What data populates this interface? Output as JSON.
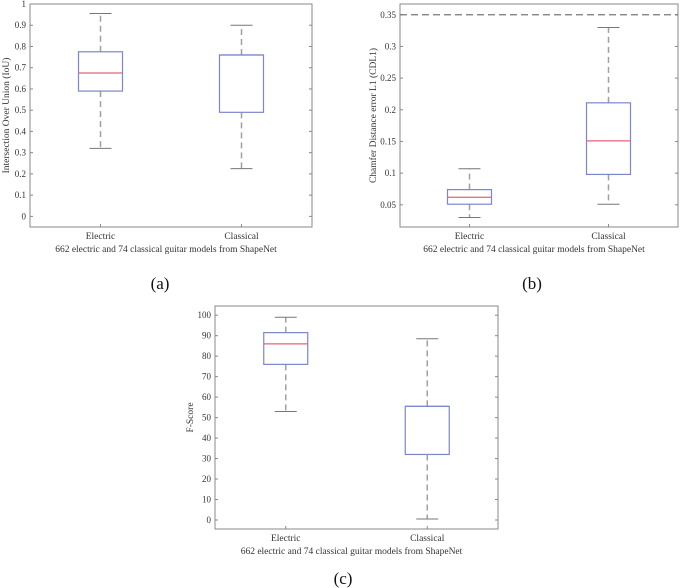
{
  "chart_data": [
    {
      "type": "box",
      "panel_label": "(a)",
      "title": "",
      "xlabel": "662 electric and  74 classical guitar models from ShapeNet",
      "ylabel": "Intersection Over Union (IoU)",
      "categories": [
        "Electric",
        "Classical"
      ],
      "ylim": [
        -0.05,
        1.0
      ],
      "yticks": [
        0,
        0.1,
        0.2,
        0.3,
        0.4,
        0.5,
        0.6,
        0.7,
        0.8,
        0.9,
        1
      ],
      "ytick_labels": [
        "0",
        "0.1",
        "0.2",
        "0.3",
        "0.4",
        "0.5",
        "0.6",
        "0.7",
        "0.8",
        "0.9",
        "1"
      ],
      "boxes": [
        {
          "whisker_low": 0.32,
          "q1": 0.59,
          "median": 0.675,
          "q3": 0.775,
          "whisker_high": 0.955
        },
        {
          "whisker_low": 0.225,
          "q1": 0.49,
          "median": 0.76,
          "q3": 0.76,
          "whisker_high": 0.9
        }
      ],
      "reference_line": null
    },
    {
      "type": "box",
      "panel_label": "(b)",
      "title": "",
      "xlabel": "662 electric and  74 classical guitar models from ShapeNet",
      "ylabel": "Chamfer Distance error L1 (CDL1)",
      "categories": [
        "Electric",
        "Classical"
      ],
      "ylim": [
        0.015,
        0.367
      ],
      "yticks": [
        0.05,
        0.1,
        0.15,
        0.2,
        0.25,
        0.3,
        0.35
      ],
      "ytick_labels": [
        "0.05",
        "0.1",
        "0.15",
        "0.2",
        "0.25",
        "0.3",
        "0.35"
      ],
      "boxes": [
        {
          "whisker_low": 0.03,
          "q1": 0.051,
          "median": 0.062,
          "q3": 0.074,
          "whisker_high": 0.107
        },
        {
          "whisker_low": 0.051,
          "q1": 0.098,
          "median": 0.151,
          "q3": 0.211,
          "whisker_high": 0.33
        }
      ],
      "reference_line": 0.35
    },
    {
      "type": "box",
      "panel_label": "(c)",
      "title": "",
      "xlabel": "662 electric and  74 classical guitar models from ShapeNet",
      "ylabel": "F-Score",
      "categories": [
        "Electric",
        "Classical"
      ],
      "ylim": [
        -4.4,
        104.5
      ],
      "yticks": [
        0,
        10,
        20,
        30,
        40,
        50,
        60,
        70,
        80,
        90,
        100
      ],
      "ytick_labels": [
        "0",
        "10",
        "20",
        "30",
        "40",
        "50",
        "60",
        "70",
        "80",
        "90",
        "100"
      ],
      "boxes": [
        {
          "whisker_low": 53,
          "q1": 76,
          "median": 86,
          "q3": 91.5,
          "whisker_high": 99
        },
        {
          "whisker_low": 0.5,
          "q1": 32,
          "median": 55.5,
          "q3": 55.5,
          "whisker_high": 88.5
        }
      ],
      "reference_line": null
    }
  ],
  "colors": {
    "box": "#7c87c9",
    "median": "#e5637a",
    "whisker": "#a0a0a0",
    "cap": "#777777",
    "axis": "#888888"
  }
}
